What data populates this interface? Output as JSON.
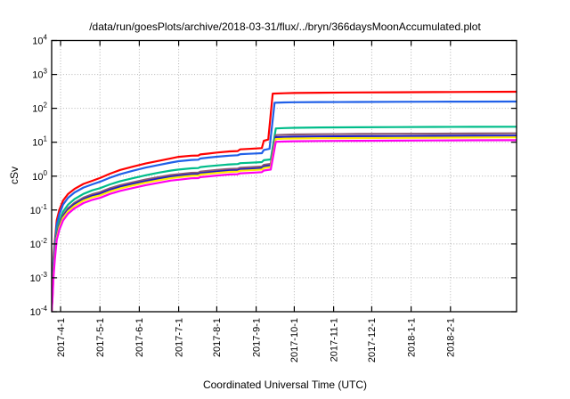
{
  "chart_data": {
    "type": "line",
    "title": "/data/run/goesPlots/archive/2018-03-31/flux/../bryn/366daysMoonAccumulated.plot",
    "xlabel": "Coordinated Universal Time (UTC)",
    "ylabel": "cSv",
    "y_scale": "log10",
    "ylim_exp": [
      -4,
      4
    ],
    "grid": "dotted",
    "legend": "none",
    "x_domain_days": [
      0,
      366
    ],
    "x_ticks": [
      {
        "t": 7,
        "label": "2017-4-1"
      },
      {
        "t": 38,
        "label": "2017-5-1"
      },
      {
        "t": 69,
        "label": "2017-6-1"
      },
      {
        "t": 100,
        "label": "2017-7-1"
      },
      {
        "t": 130,
        "label": "2017-8-1"
      },
      {
        "t": 161,
        "label": "2017-9-1"
      },
      {
        "t": 191,
        "label": "2017-10-1"
      },
      {
        "t": 222,
        "label": "2017-11-1"
      },
      {
        "t": 252,
        "label": "2017-12-1"
      },
      {
        "t": 283,
        "label": "2018-1-1"
      },
      {
        "t": 314,
        "label": "2018-2-1"
      }
    ],
    "y_ticks": [
      {
        "exp": "4"
      },
      {
        "exp": "3"
      },
      {
        "exp": "2"
      },
      {
        "exp": "1"
      },
      {
        "exp": "0"
      },
      {
        "exp": "-1"
      },
      {
        "exp": "-2"
      },
      {
        "exp": "-3"
      },
      {
        "exp": "-4"
      }
    ],
    "event_note": "step increase near 2017-9-6 and large jump near 2017-9-10 in all series",
    "series": [
      {
        "name": "red",
        "color": "#ff0000",
        "points": [
          [
            0,
            0.0001
          ],
          [
            0.8,
            0.001
          ],
          [
            1.5,
            0.004
          ],
          [
            2.5,
            0.012
          ],
          [
            4,
            0.05
          ],
          [
            6,
            0.1
          ],
          [
            9,
            0.19
          ],
          [
            13,
            0.3
          ],
          [
            18,
            0.42
          ],
          [
            25,
            0.59
          ],
          [
            32,
            0.73
          ],
          [
            38,
            0.88
          ],
          [
            46,
            1.18
          ],
          [
            54,
            1.52
          ],
          [
            64,
            1.9
          ],
          [
            74,
            2.35
          ],
          [
            84,
            2.8
          ],
          [
            94,
            3.35
          ],
          [
            100,
            3.7
          ],
          [
            110,
            4.0
          ],
          [
            115.5,
            4.05
          ],
          [
            117,
            4.35
          ],
          [
            123,
            4.6
          ],
          [
            130,
            4.95
          ],
          [
            140,
            5.35
          ],
          [
            146.5,
            5.5
          ],
          [
            148.5,
            6.15
          ],
          [
            155,
            6.35
          ],
          [
            161,
            6.55
          ],
          [
            165.5,
            6.7
          ],
          [
            167,
            11
          ],
          [
            170.5,
            12
          ],
          [
            174,
            272
          ],
          [
            183,
            278
          ],
          [
            191,
            284
          ],
          [
            211,
            289
          ],
          [
            241,
            294
          ],
          [
            271,
            298
          ],
          [
            301,
            301
          ],
          [
            331,
            304
          ],
          [
            366,
            308
          ]
        ]
      },
      {
        "name": "blue",
        "color": "#2060e8",
        "points": [
          [
            0,
            0.0001
          ],
          [
            0.8,
            0.0007
          ],
          [
            1.5,
            0.003
          ],
          [
            2.5,
            0.009
          ],
          [
            4,
            0.037
          ],
          [
            6,
            0.075
          ],
          [
            9,
            0.145
          ],
          [
            13,
            0.23
          ],
          [
            18,
            0.33
          ],
          [
            25,
            0.46
          ],
          [
            32,
            0.57
          ],
          [
            38,
            0.68
          ],
          [
            46,
            0.9
          ],
          [
            54,
            1.14
          ],
          [
            64,
            1.44
          ],
          [
            74,
            1.78
          ],
          [
            84,
            2.12
          ],
          [
            94,
            2.52
          ],
          [
            100,
            2.75
          ],
          [
            110,
            3.0
          ],
          [
            115.5,
            3.05
          ],
          [
            117,
            3.3
          ],
          [
            123,
            3.5
          ],
          [
            130,
            3.72
          ],
          [
            140,
            4.02
          ],
          [
            146.5,
            4.12
          ],
          [
            148.5,
            4.45
          ],
          [
            155,
            4.55
          ],
          [
            161,
            4.65
          ],
          [
            165.5,
            4.75
          ],
          [
            167,
            5.9
          ],
          [
            171.5,
            6.4
          ],
          [
            175.5,
            146
          ],
          [
            183,
            149
          ],
          [
            191,
            151
          ],
          [
            211,
            152.5
          ],
          [
            241,
            154
          ],
          [
            271,
            155.5
          ],
          [
            301,
            156.5
          ],
          [
            331,
            157.5
          ],
          [
            366,
            158.5
          ]
        ]
      },
      {
        "name": "green",
        "color": "#00bd8a",
        "points": [
          [
            0,
            0.0001
          ],
          [
            0.8,
            0.0005
          ],
          [
            1.5,
            0.002
          ],
          [
            2.5,
            0.006
          ],
          [
            4,
            0.024
          ],
          [
            6,
            0.048
          ],
          [
            9,
            0.09
          ],
          [
            13,
            0.145
          ],
          [
            18,
            0.21
          ],
          [
            25,
            0.3
          ],
          [
            32,
            0.38
          ],
          [
            38,
            0.44
          ],
          [
            46,
            0.57
          ],
          [
            54,
            0.71
          ],
          [
            64,
            0.87
          ],
          [
            74,
            1.06
          ],
          [
            84,
            1.26
          ],
          [
            94,
            1.46
          ],
          [
            100,
            1.56
          ],
          [
            110,
            1.7
          ],
          [
            115.5,
            1.73
          ],
          [
            117,
            1.85
          ],
          [
            123,
            1.95
          ],
          [
            130,
            2.06
          ],
          [
            140,
            2.21
          ],
          [
            146.5,
            2.27
          ],
          [
            148.5,
            2.41
          ],
          [
            155,
            2.47
          ],
          [
            161,
            2.53
          ],
          [
            165.5,
            2.6
          ],
          [
            167,
            2.95
          ],
          [
            172.5,
            3.1
          ],
          [
            176.5,
            25.5
          ],
          [
            183,
            26.2
          ],
          [
            191,
            26.7
          ],
          [
            211,
            27.2
          ],
          [
            241,
            27.6
          ],
          [
            271,
            27.9
          ],
          [
            301,
            28.2
          ],
          [
            331,
            28.4
          ],
          [
            366,
            28.7
          ]
        ]
      },
      {
        "name": "plum",
        "color": "#8d5a72",
        "points": [
          [
            0,
            0.0001
          ],
          [
            0.8,
            0.0004
          ],
          [
            1.5,
            0.0016
          ],
          [
            2.5,
            0.005
          ],
          [
            4,
            0.019
          ],
          [
            6,
            0.038
          ],
          [
            9,
            0.071
          ],
          [
            13,
            0.113
          ],
          [
            18,
            0.163
          ],
          [
            25,
            0.232
          ],
          [
            32,
            0.292
          ],
          [
            38,
            0.335
          ],
          [
            46,
            0.44
          ],
          [
            54,
            0.54
          ],
          [
            64,
            0.655
          ],
          [
            74,
            0.79
          ],
          [
            84,
            0.93
          ],
          [
            94,
            1.08
          ],
          [
            100,
            1.14
          ],
          [
            110,
            1.25
          ],
          [
            115.5,
            1.27
          ],
          [
            117,
            1.36
          ],
          [
            123,
            1.43
          ],
          [
            130,
            1.52
          ],
          [
            140,
            1.63
          ],
          [
            146.5,
            1.67
          ],
          [
            148.5,
            1.77
          ],
          [
            155,
            1.82
          ],
          [
            161,
            1.87
          ],
          [
            165.5,
            1.92
          ],
          [
            167,
            2.15
          ],
          [
            172.5,
            2.3
          ],
          [
            176.5,
            16.2
          ],
          [
            183,
            16.6
          ],
          [
            191,
            16.9
          ],
          [
            211,
            17.2
          ],
          [
            241,
            17.5
          ],
          [
            271,
            17.7
          ],
          [
            301,
            17.9
          ],
          [
            331,
            18.1
          ],
          [
            366,
            18.3
          ]
        ]
      },
      {
        "name": "navy",
        "color": "#1c1cc8",
        "points": [
          [
            0,
            0.0001
          ],
          [
            0.8,
            0.00037
          ],
          [
            1.5,
            0.0015
          ],
          [
            2.5,
            0.0046
          ],
          [
            4,
            0.017
          ],
          [
            6,
            0.034
          ],
          [
            9,
            0.064
          ],
          [
            13,
            0.102
          ],
          [
            18,
            0.147
          ],
          [
            25,
            0.208
          ],
          [
            32,
            0.262
          ],
          [
            38,
            0.3
          ],
          [
            46,
            0.395
          ],
          [
            54,
            0.485
          ],
          [
            64,
            0.59
          ],
          [
            74,
            0.71
          ],
          [
            84,
            0.835
          ],
          [
            94,
            0.97
          ],
          [
            100,
            1.02
          ],
          [
            110,
            1.12
          ],
          [
            115.5,
            1.14
          ],
          [
            117,
            1.22
          ],
          [
            123,
            1.28
          ],
          [
            130,
            1.36
          ],
          [
            140,
            1.46
          ],
          [
            146.5,
            1.49
          ],
          [
            148.5,
            1.58
          ],
          [
            155,
            1.62
          ],
          [
            161,
            1.67
          ],
          [
            165.5,
            1.72
          ],
          [
            167,
            1.92
          ],
          [
            172.5,
            2.05
          ],
          [
            176.5,
            14.0
          ],
          [
            183,
            14.3
          ],
          [
            191,
            14.5
          ],
          [
            211,
            14.8
          ],
          [
            241,
            15.0
          ],
          [
            271,
            15.2
          ],
          [
            301,
            15.35
          ],
          [
            331,
            15.5
          ],
          [
            366,
            15.6
          ]
        ]
      },
      {
        "name": "yellow",
        "color": "#ffec00",
        "points": [
          [
            0,
            0.0001
          ],
          [
            0.8,
            0.00033
          ],
          [
            1.5,
            0.0013
          ],
          [
            2.5,
            0.0042
          ],
          [
            4,
            0.015
          ],
          [
            6,
            0.031
          ],
          [
            9,
            0.058
          ],
          [
            13,
            0.092
          ],
          [
            18,
            0.133
          ],
          [
            25,
            0.19
          ],
          [
            32,
            0.238
          ],
          [
            38,
            0.27
          ],
          [
            46,
            0.355
          ],
          [
            54,
            0.435
          ],
          [
            64,
            0.53
          ],
          [
            74,
            0.64
          ],
          [
            84,
            0.755
          ],
          [
            94,
            0.875
          ],
          [
            100,
            0.925
          ],
          [
            110,
            1.02
          ],
          [
            115.5,
            1.04
          ],
          [
            117,
            1.11
          ],
          [
            123,
            1.17
          ],
          [
            130,
            1.24
          ],
          [
            140,
            1.33
          ],
          [
            146.5,
            1.36
          ],
          [
            148.5,
            1.44
          ],
          [
            155,
            1.48
          ],
          [
            161,
            1.52
          ],
          [
            165.5,
            1.56
          ],
          [
            167,
            1.74
          ],
          [
            172.5,
            1.86
          ],
          [
            176.5,
            12.4
          ],
          [
            183,
            12.7
          ],
          [
            191,
            12.9
          ],
          [
            211,
            13.1
          ],
          [
            241,
            13.3
          ],
          [
            271,
            13.45
          ],
          [
            301,
            13.6
          ],
          [
            331,
            13.75
          ],
          [
            366,
            13.9
          ]
        ]
      },
      {
        "name": "magenta",
        "color": "#ff00f0",
        "points": [
          [
            0,
            0.0001
          ],
          [
            0.8,
            0.00028
          ],
          [
            1.5,
            0.0011
          ],
          [
            2.5,
            0.0035
          ],
          [
            4,
            0.013
          ],
          [
            6,
            0.026
          ],
          [
            9,
            0.049
          ],
          [
            13,
            0.078
          ],
          [
            18,
            0.112
          ],
          [
            25,
            0.16
          ],
          [
            32,
            0.2
          ],
          [
            38,
            0.228
          ],
          [
            46,
            0.3
          ],
          [
            54,
            0.368
          ],
          [
            64,
            0.447
          ],
          [
            74,
            0.54
          ],
          [
            84,
            0.635
          ],
          [
            94,
            0.74
          ],
          [
            100,
            0.785
          ],
          [
            110,
            0.86
          ],
          [
            115.5,
            0.875
          ],
          [
            117,
            0.935
          ],
          [
            123,
            0.98
          ],
          [
            130,
            1.04
          ],
          [
            140,
            1.12
          ],
          [
            146.5,
            1.14
          ],
          [
            148.5,
            1.21
          ],
          [
            155,
            1.24
          ],
          [
            161,
            1.28
          ],
          [
            165.5,
            1.31
          ],
          [
            167,
            1.46
          ],
          [
            172.5,
            1.56
          ],
          [
            176.5,
            10.3
          ],
          [
            183,
            10.5
          ],
          [
            191,
            10.7
          ],
          [
            211,
            10.9
          ],
          [
            241,
            11.0
          ],
          [
            271,
            11.15
          ],
          [
            301,
            11.25
          ],
          [
            331,
            11.4
          ],
          [
            366,
            11.5
          ]
        ]
      }
    ]
  }
}
